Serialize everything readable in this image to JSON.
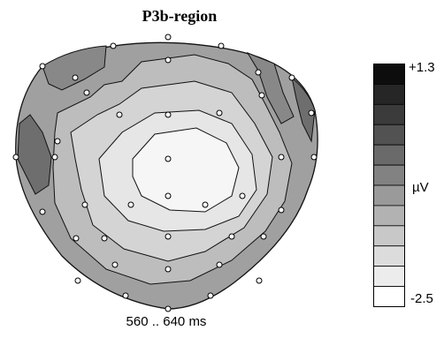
{
  "figure": {
    "title": "P3b-region",
    "time_window": "560 .. 640 ms"
  },
  "color_scale": {
    "max_label": "+1.3",
    "min_label": "-2.5",
    "unit": "µV",
    "steps": [
      "#0d0d0d",
      "#262626",
      "#3b3b3b",
      "#525252",
      "#6a6a6a",
      "#828282",
      "#9a9a9a",
      "#b2b2b2",
      "#c8c8c8",
      "#dcdcdc",
      "#ececec",
      "#ffffff"
    ]
  },
  "contour_fills": [
    "#6e6e6e",
    "#888888",
    "#a0a0a0",
    "#bdbdbd",
    "#d4d4d4",
    "#eeeeee"
  ]
}
